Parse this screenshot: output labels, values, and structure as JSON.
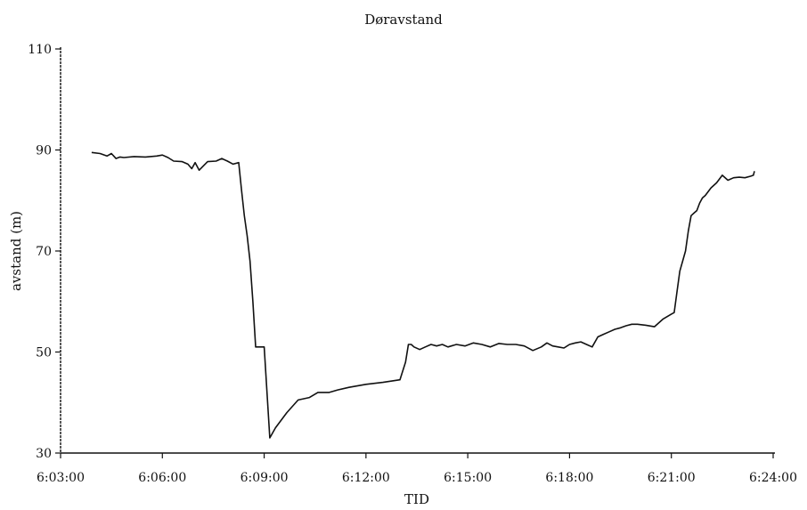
{
  "chart_data": {
    "type": "line",
    "title": "Døravstand",
    "xlabel": "TID",
    "ylabel": "avstand (m)",
    "x_unit": "time (h:mm:ss)",
    "xlim": [
      "6:03:00",
      "6:24:00"
    ],
    "ylim": [
      30,
      110
    ],
    "x_ticks": [
      "6:03:00",
      "6:06:00",
      "6:09:00",
      "6:12:00",
      "6:15:00",
      "6:18:00",
      "6:21:00",
      "6:24:00"
    ],
    "y_ticks": [
      30,
      50,
      70,
      90,
      110
    ],
    "grid": false,
    "legend": "none",
    "colors": {
      "line": "#111111",
      "axis": "#111111"
    },
    "series": [
      {
        "x": [
          "6:03:55",
          "6:04:10",
          "6:04:22",
          "6:04:30",
          "6:04:38",
          "6:04:45",
          "6:04:52",
          "6:05:10",
          "6:05:30",
          "6:05:50",
          "6:06:00",
          "6:06:10",
          "6:06:20",
          "6:06:35",
          "6:06:45",
          "6:06:52",
          "6:06:58",
          "6:07:05",
          "6:07:20",
          "6:07:35",
          "6:07:45",
          "6:07:55",
          "6:08:05",
          "6:08:15",
          "6:08:20",
          "6:08:25",
          "6:08:30",
          "6:08:35",
          "6:08:40",
          "6:08:45",
          "6:08:50",
          "6:09:00",
          "6:09:10",
          "6:09:20",
          "6:09:40",
          "6:10:00",
          "6:10:20",
          "6:10:35",
          "6:10:45",
          "6:10:55",
          "6:11:10",
          "6:11:30",
          "6:12:00",
          "6:12:30",
          "6:13:00",
          "6:13:10",
          "6:13:15",
          "6:13:20",
          "6:13:25",
          "6:13:35",
          "6:13:45",
          "6:13:55",
          "6:14:05",
          "6:14:15",
          "6:14:25",
          "6:14:40",
          "6:14:55",
          "6:15:10",
          "6:15:25",
          "6:15:40",
          "6:15:55",
          "6:16:10",
          "6:16:25",
          "6:16:40",
          "6:16:55",
          "6:17:10",
          "6:17:20",
          "6:17:30",
          "6:17:40",
          "6:17:50",
          "6:18:00",
          "6:18:10",
          "6:18:20",
          "6:18:30",
          "6:18:40",
          "6:18:50",
          "6:19:00",
          "6:19:10",
          "6:19:20",
          "6:19:30",
          "6:19:40",
          "6:19:50",
          "6:20:00",
          "6:20:15",
          "6:20:30",
          "6:20:45",
          "6:21:00",
          "6:21:05",
          "6:21:10",
          "6:21:15",
          "6:21:20",
          "6:21:25",
          "6:21:30",
          "6:21:35",
          "6:21:40",
          "6:21:45",
          "6:21:50",
          "6:21:55",
          "6:22:00",
          "6:22:10",
          "6:22:20",
          "6:22:30",
          "6:22:40",
          "6:22:50",
          "6:23:00",
          "6:23:10",
          "6:23:20",
          "6:23:25",
          "6:23:27"
        ],
        "y": [
          89.5,
          89.3,
          88.8,
          89.3,
          88.3,
          88.6,
          88.5,
          88.7,
          88.6,
          88.8,
          89.0,
          88.5,
          87.8,
          87.7,
          87.2,
          86.3,
          87.5,
          86.0,
          87.7,
          87.8,
          88.3,
          87.8,
          87.2,
          87.5,
          82.0,
          77.0,
          73.0,
          68.0,
          60.0,
          51.0,
          51.0,
          51.0,
          33.0,
          35.0,
          38.0,
          40.5,
          41.0,
          42.0,
          42.0,
          42.0,
          42.5,
          43.0,
          43.6,
          44.0,
          44.5,
          48.0,
          51.5,
          51.5,
          51.0,
          50.5,
          51.0,
          51.5,
          51.2,
          51.5,
          51.0,
          51.5,
          51.2,
          51.8,
          51.5,
          51.0,
          51.7,
          51.5,
          51.5,
          51.2,
          50.3,
          51.0,
          51.8,
          51.2,
          51.0,
          50.8,
          51.5,
          51.8,
          52.0,
          51.5,
          51.0,
          53.0,
          53.5,
          54.0,
          54.5,
          54.8,
          55.2,
          55.5,
          55.5,
          55.3,
          55.0,
          56.5,
          57.5,
          57.8,
          62.0,
          66.0,
          68.0,
          70.0,
          74.0,
          77.0,
          77.5,
          78.0,
          79.5,
          80.5,
          81.0,
          82.5,
          83.5,
          85.0,
          84.0,
          84.5,
          84.6,
          84.5,
          84.8,
          85.0,
          85.8
        ]
      }
    ]
  }
}
